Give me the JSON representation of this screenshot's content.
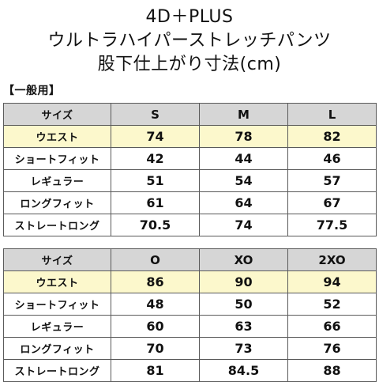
{
  "title": {
    "line1": "4D＋PLUS",
    "line2": "ウルトラハイパーストレッチパンツ",
    "line3": "股下仕上がり寸法(cm)"
  },
  "section_label": "【一般用】",
  "table1": {
    "header": [
      "サイズ",
      "S",
      "M",
      "L"
    ],
    "rows": [
      {
        "label": "ウエスト",
        "values": [
          "74",
          "78",
          "82"
        ]
      },
      {
        "label": "ショートフィット",
        "values": [
          "42",
          "44",
          "46"
        ]
      },
      {
        "label": "レギュラー",
        "values": [
          "51",
          "54",
          "57"
        ]
      },
      {
        "label": "ロングフィット",
        "values": [
          "61",
          "64",
          "67"
        ]
      },
      {
        "label": "ストレートロング",
        "values": [
          "70.5",
          "74",
          "77.5"
        ]
      }
    ]
  },
  "table2": {
    "header": [
      "サイズ",
      "O",
      "XO",
      "2XO"
    ],
    "rows": [
      {
        "label": "ウエスト",
        "values": [
          "86",
          "90",
          "94"
        ]
      },
      {
        "label": "ショートフィット",
        "values": [
          "48",
          "50",
          "52"
        ]
      },
      {
        "label": "レギュラー",
        "values": [
          "60",
          "63",
          "66"
        ]
      },
      {
        "label": "ロングフィット",
        "values": [
          "70",
          "73",
          "76"
        ]
      },
      {
        "label": "ストレートロング",
        "values": [
          "81",
          "84.5",
          "88"
        ]
      }
    ]
  },
  "colors": {
    "header_bg": "#d6d6d6",
    "waist_row_bg": "#fcf8cc",
    "border": "#5a5a5a"
  }
}
